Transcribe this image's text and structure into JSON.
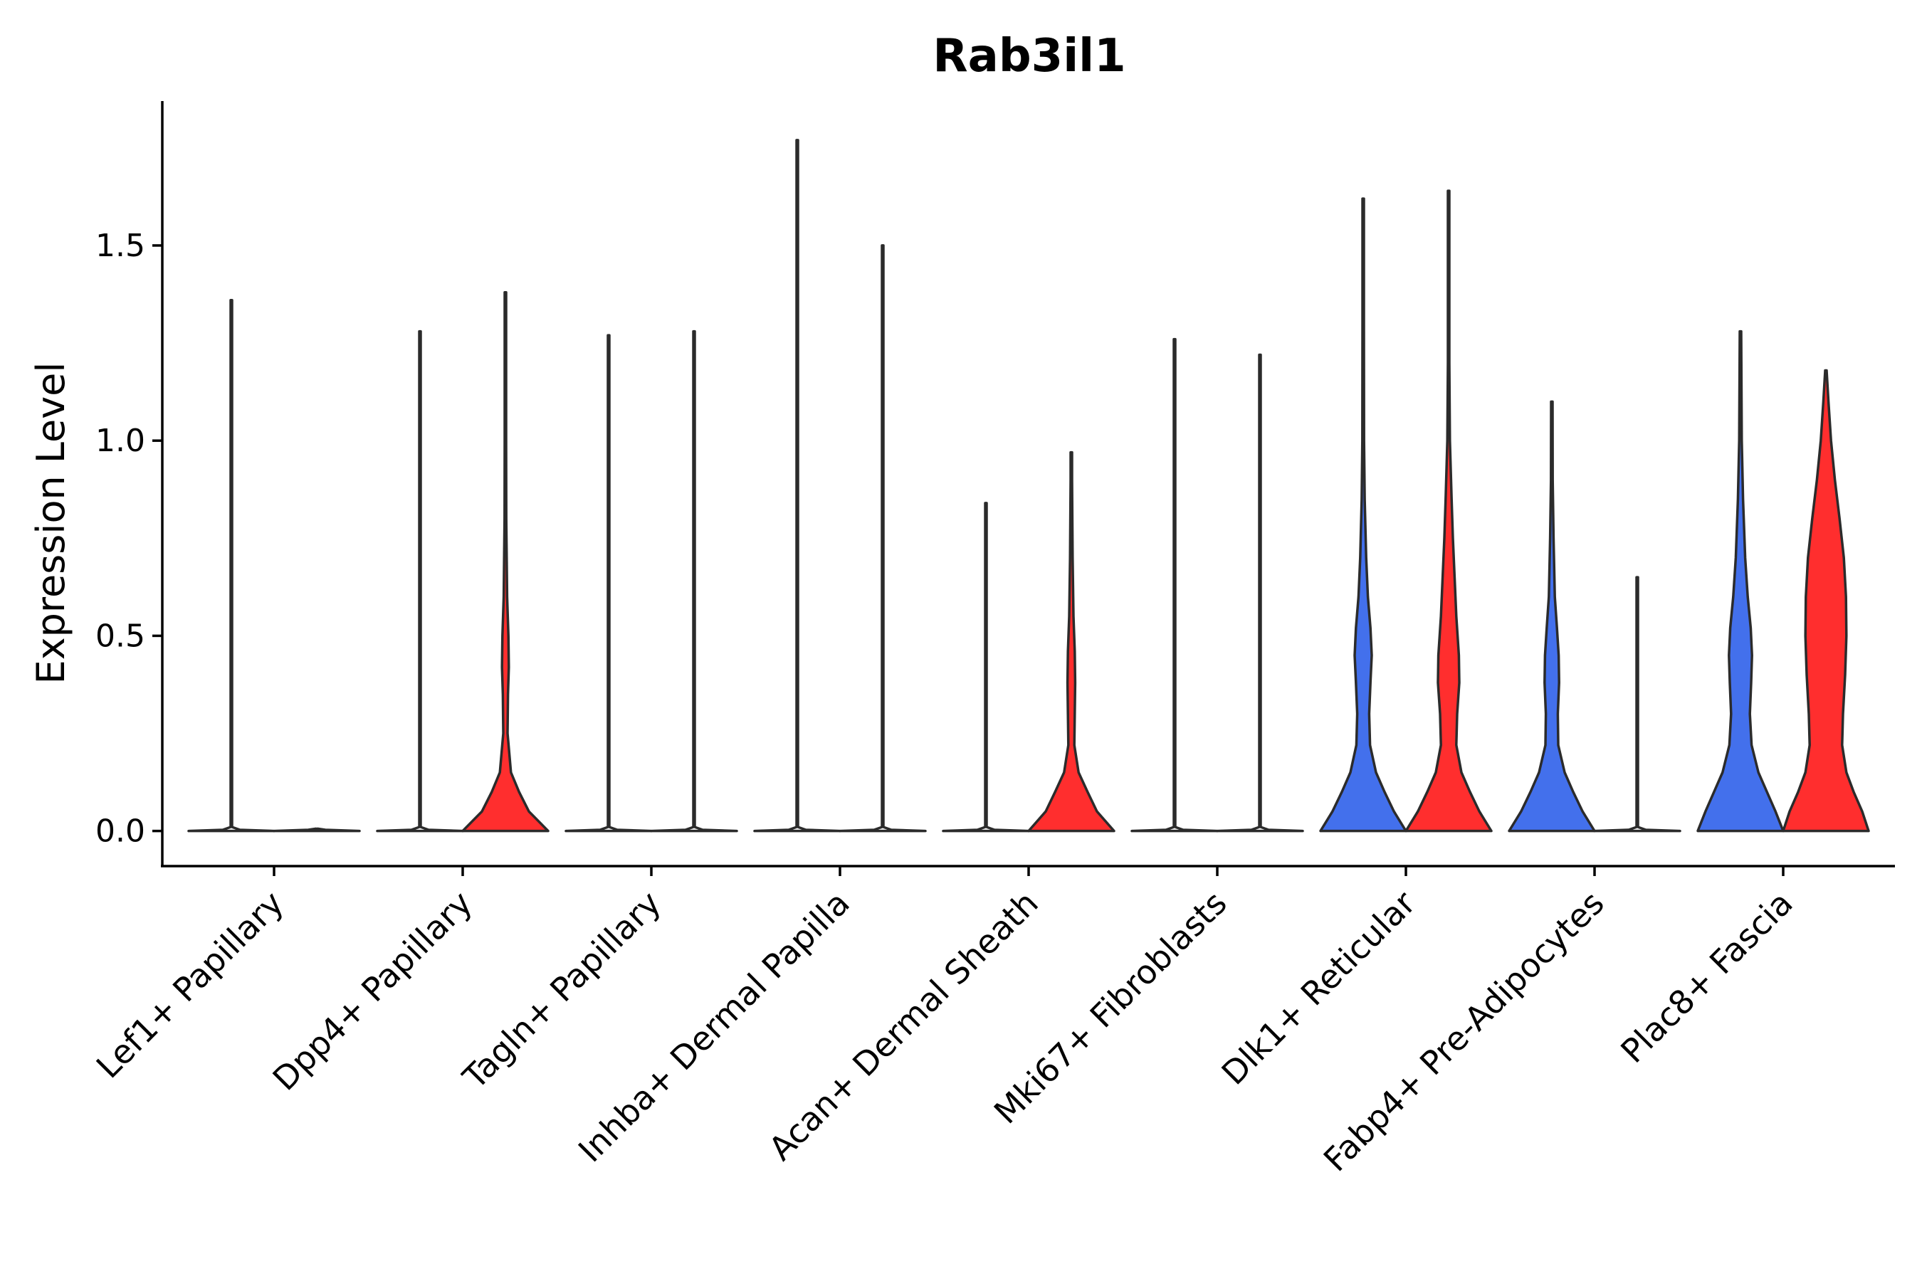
{
  "chart_data": {
    "type": "violin",
    "title": "Rab3il1",
    "xlabel": "",
    "ylabel": "Expression Level",
    "ylim": [
      -0.09,
      1.87
    ],
    "yticks": [
      "0.0",
      "0.5",
      "1.0",
      "1.5"
    ],
    "ytick_values": [
      0.0,
      0.5,
      1.0,
      1.5
    ],
    "categories": [
      "Lef1+ Papillary",
      "Dpp4+ Papillary",
      "Tagln+ Papillary",
      "Inhba+ Dermal Papilla",
      "Acan+ Dermal Sheath",
      "Mki67+ Fibroblasts",
      "Dlk1+ Reticular",
      "Fabp4+ Pre-Adipocytes",
      "Plac8+ Fascia"
    ],
    "colors": {
      "left": "#ffffff",
      "right": "#ffffff",
      "blue": "#4370ec",
      "red": "#ff2e2e",
      "outline": "#2b2b2b"
    },
    "violins": [
      {
        "category": "Lef1+ Papillary",
        "side": "left",
        "fill": "#ffffff",
        "max": 1.36,
        "width": [
          [
            0,
            1.0
          ],
          [
            0.003,
            0.2
          ],
          [
            0.01,
            0.01
          ],
          [
            1.36,
            0.005
          ]
        ]
      },
      {
        "category": "Lef1+ Papillary",
        "side": "right",
        "fill": "#ffffff",
        "max": 0.0,
        "width": [
          [
            0,
            1.0
          ],
          [
            0.003,
            0.2
          ],
          [
            0.006,
            0.0
          ]
        ]
      },
      {
        "category": "Dpp4+ Papillary",
        "side": "left",
        "fill": "#ffffff",
        "max": 1.28,
        "width": [
          [
            0,
            1.0
          ],
          [
            0.003,
            0.2
          ],
          [
            0.01,
            0.01
          ],
          [
            1.28,
            0.005
          ]
        ]
      },
      {
        "category": "Dpp4+ Papillary",
        "side": "right",
        "fill": "#ff2e2e",
        "max": 1.38,
        "width": [
          [
            0,
            1.0
          ],
          [
            0.05,
            0.55
          ],
          [
            0.1,
            0.32
          ],
          [
            0.15,
            0.13
          ],
          [
            0.25,
            0.05
          ],
          [
            0.35,
            0.06
          ],
          [
            0.42,
            0.08
          ],
          [
            0.5,
            0.07
          ],
          [
            0.6,
            0.04
          ],
          [
            0.8,
            0.02
          ],
          [
            1.0,
            0.008
          ],
          [
            1.38,
            0.004
          ]
        ]
      },
      {
        "category": "Tagln+ Papillary",
        "side": "left",
        "fill": "#ffffff",
        "max": 1.27,
        "width": [
          [
            0,
            1.0
          ],
          [
            0.003,
            0.2
          ],
          [
            0.01,
            0.01
          ],
          [
            1.27,
            0.005
          ]
        ]
      },
      {
        "category": "Tagln+ Papillary",
        "side": "right",
        "fill": "#ffffff",
        "max": 1.28,
        "width": [
          [
            0,
            1.0
          ],
          [
            0.003,
            0.2
          ],
          [
            0.01,
            0.01
          ],
          [
            1.28,
            0.005
          ]
        ]
      },
      {
        "category": "Inhba+ Dermal Papilla",
        "side": "left",
        "fill": "#ffffff",
        "max": 1.77,
        "width": [
          [
            0,
            1.0
          ],
          [
            0.003,
            0.2
          ],
          [
            0.01,
            0.01
          ],
          [
            1.77,
            0.005
          ]
        ]
      },
      {
        "category": "Inhba+ Dermal Papilla",
        "side": "right",
        "fill": "#ffffff",
        "max": 1.5,
        "width": [
          [
            0,
            1.0
          ],
          [
            0.003,
            0.2
          ],
          [
            0.01,
            0.01
          ],
          [
            1.5,
            0.005
          ]
        ]
      },
      {
        "category": "Acan+ Dermal Sheath",
        "side": "left",
        "fill": "#ffffff",
        "max": 0.84,
        "width": [
          [
            0,
            1.0
          ],
          [
            0.003,
            0.2
          ],
          [
            0.01,
            0.01
          ],
          [
            0.84,
            0.005
          ]
        ]
      },
      {
        "category": "Acan+ Dermal Sheath",
        "side": "right",
        "fill": "#ff2e2e",
        "max": 0.97,
        "width": [
          [
            0,
            1.0
          ],
          [
            0.05,
            0.6
          ],
          [
            0.1,
            0.38
          ],
          [
            0.15,
            0.17
          ],
          [
            0.22,
            0.07
          ],
          [
            0.3,
            0.08
          ],
          [
            0.38,
            0.09
          ],
          [
            0.46,
            0.08
          ],
          [
            0.55,
            0.05
          ],
          [
            0.7,
            0.03
          ],
          [
            0.9,
            0.015
          ],
          [
            0.97,
            0.008
          ]
        ]
      },
      {
        "category": "Mki67+ Fibroblasts",
        "side": "left",
        "fill": "#ffffff",
        "max": 1.26,
        "width": [
          [
            0,
            1.0
          ],
          [
            0.003,
            0.2
          ],
          [
            0.01,
            0.01
          ],
          [
            1.26,
            0.005
          ]
        ]
      },
      {
        "category": "Mki67+ Fibroblasts",
        "side": "right",
        "fill": "#ffffff",
        "max": 1.22,
        "width": [
          [
            0,
            1.0
          ],
          [
            0.003,
            0.2
          ],
          [
            0.01,
            0.01
          ],
          [
            1.22,
            0.005
          ]
        ]
      },
      {
        "category": "Dlk1+ Reticular",
        "side": "left",
        "fill": "#4370ec",
        "max": 1.62,
        "width": [
          [
            0,
            1.0
          ],
          [
            0.05,
            0.72
          ],
          [
            0.1,
            0.5
          ],
          [
            0.15,
            0.3
          ],
          [
            0.22,
            0.16
          ],
          [
            0.3,
            0.14
          ],
          [
            0.38,
            0.17
          ],
          [
            0.45,
            0.2
          ],
          [
            0.52,
            0.17
          ],
          [
            0.6,
            0.11
          ],
          [
            0.7,
            0.07
          ],
          [
            0.85,
            0.035
          ],
          [
            1.0,
            0.02
          ],
          [
            1.3,
            0.008
          ],
          [
            1.62,
            0.004
          ]
        ]
      },
      {
        "category": "Dlk1+ Reticular",
        "side": "right",
        "fill": "#ff2e2e",
        "max": 1.64,
        "width": [
          [
            0,
            1.0
          ],
          [
            0.05,
            0.72
          ],
          [
            0.1,
            0.5
          ],
          [
            0.15,
            0.3
          ],
          [
            0.22,
            0.18
          ],
          [
            0.3,
            0.2
          ],
          [
            0.38,
            0.25
          ],
          [
            0.45,
            0.24
          ],
          [
            0.55,
            0.18
          ],
          [
            0.65,
            0.14
          ],
          [
            0.75,
            0.1
          ],
          [
            0.85,
            0.07
          ],
          [
            1.0,
            0.03
          ],
          [
            1.2,
            0.012
          ],
          [
            1.64,
            0.004
          ]
        ]
      },
      {
        "category": "Fabp4+ Pre-Adipocytes",
        "side": "left",
        "fill": "#4370ec",
        "max": 1.1,
        "width": [
          [
            0,
            1.0
          ],
          [
            0.05,
            0.72
          ],
          [
            0.1,
            0.5
          ],
          [
            0.15,
            0.3
          ],
          [
            0.22,
            0.15
          ],
          [
            0.3,
            0.14
          ],
          [
            0.38,
            0.17
          ],
          [
            0.45,
            0.16
          ],
          [
            0.52,
            0.12
          ],
          [
            0.6,
            0.07
          ],
          [
            0.75,
            0.04
          ],
          [
            0.9,
            0.02
          ],
          [
            1.1,
            0.005
          ]
        ]
      },
      {
        "category": "Fabp4+ Pre-Adipocytes",
        "side": "right",
        "fill": "#ffffff",
        "max": 0.65,
        "width": [
          [
            0,
            1.0
          ],
          [
            0.003,
            0.2
          ],
          [
            0.01,
            0.01
          ],
          [
            0.65,
            0.006
          ]
        ]
      },
      {
        "category": "Plac8+ Fascia",
        "side": "left",
        "fill": "#4370ec",
        "max": 1.28,
        "width": [
          [
            0,
            1.0
          ],
          [
            0.05,
            0.82
          ],
          [
            0.1,
            0.62
          ],
          [
            0.15,
            0.42
          ],
          [
            0.22,
            0.26
          ],
          [
            0.3,
            0.22
          ],
          [
            0.38,
            0.25
          ],
          [
            0.45,
            0.27
          ],
          [
            0.52,
            0.24
          ],
          [
            0.6,
            0.17
          ],
          [
            0.7,
            0.11
          ],
          [
            0.85,
            0.06
          ],
          [
            1.0,
            0.03
          ],
          [
            1.28,
            0.007
          ]
        ]
      },
      {
        "category": "Plac8+ Fascia",
        "side": "right",
        "fill": "#ff2e2e",
        "max": 1.18,
        "width": [
          [
            0,
            1.0
          ],
          [
            0.05,
            0.85
          ],
          [
            0.1,
            0.65
          ],
          [
            0.15,
            0.48
          ],
          [
            0.22,
            0.38
          ],
          [
            0.3,
            0.4
          ],
          [
            0.4,
            0.45
          ],
          [
            0.5,
            0.48
          ],
          [
            0.6,
            0.47
          ],
          [
            0.7,
            0.42
          ],
          [
            0.8,
            0.32
          ],
          [
            0.9,
            0.21
          ],
          [
            1.0,
            0.12
          ],
          [
            1.1,
            0.06
          ],
          [
            1.18,
            0.012
          ]
        ]
      }
    ]
  }
}
